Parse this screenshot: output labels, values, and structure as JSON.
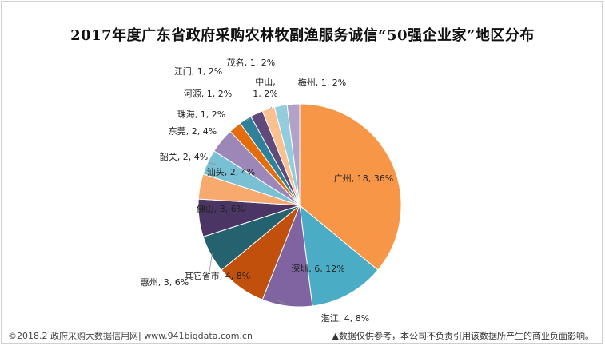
{
  "chart_data": {
    "type": "pie",
    "title": "2017年度广东省政府采购农林牧副渔服务诚信“50强企业家”地区分布",
    "slices": [
      {
        "name": "广州",
        "value": 18,
        "percent": "36%",
        "color": "#f79646"
      },
      {
        "name": "深圳",
        "value": 6,
        "percent": "12%",
        "color": "#4bacc6"
      },
      {
        "name": "湛江",
        "value": 4,
        "percent": "8%",
        "color": "#8064a2"
      },
      {
        "name": "其它省市",
        "value": 4,
        "percent": "8%",
        "color": "#c0500b"
      },
      {
        "name": "惠州",
        "value": 3,
        "percent": "6%",
        "color": "#256270"
      },
      {
        "name": "佛山",
        "value": 3,
        "percent": "6%",
        "color": "#4a3565"
      },
      {
        "name": "汕头",
        "value": 2,
        "percent": "4%",
        "color": "#f8aa6e"
      },
      {
        "name": "韶关",
        "value": 2,
        "percent": "4%",
        "color": "#79c0d5"
      },
      {
        "name": "东莞",
        "value": 2,
        "percent": "4%",
        "color": "#9c87b8"
      },
      {
        "name": "珠海",
        "value": 1,
        "percent": "2%",
        "color": "#e46c0a"
      },
      {
        "name": "河源",
        "value": 1,
        "percent": "2%",
        "color": "#2e8198"
      },
      {
        "name": "江门",
        "value": 1,
        "percent": "2%",
        "color": "#604a7b"
      },
      {
        "name": "茂名",
        "value": 1,
        "percent": "2%",
        "color": "#fac090"
      },
      {
        "name": "中山",
        "value": 1,
        "percent": "2%",
        "color": "#93cddd"
      },
      {
        "name": "梅州",
        "value": 1,
        "percent": "2%",
        "color": "#b3a2c7"
      }
    ],
    "legend": "none"
  },
  "footer": {
    "left": "©2018.2 政府采购大数据信用网| www.941bigdata.com.cn",
    "right": "▲数据仅供参考，本公司不负责引用该数据所产生的商业负面影响。"
  }
}
